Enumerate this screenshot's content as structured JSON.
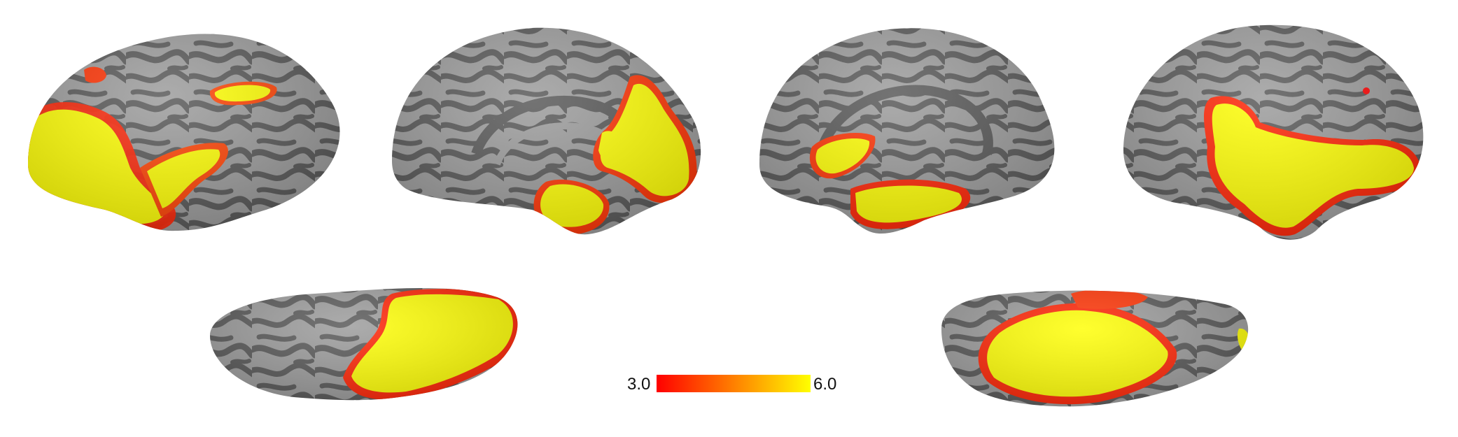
{
  "figure": {
    "panels": [
      {
        "view": "left-lateral"
      },
      {
        "view": "left-medial"
      },
      {
        "view": "right-medial"
      },
      {
        "view": "right-lateral"
      },
      {
        "view": "left-ventral"
      },
      {
        "view": "right-ventral"
      }
    ],
    "colors": {
      "sulci": "#555555",
      "gyri": "#9a9a9a",
      "low": "#ff0000",
      "high": "#ffff00",
      "background": "#ffffff"
    }
  },
  "colorbar": {
    "min_label": "3.0",
    "max_label": "6.0",
    "low_color": "#ff0000",
    "high_color": "#ffff00"
  }
}
